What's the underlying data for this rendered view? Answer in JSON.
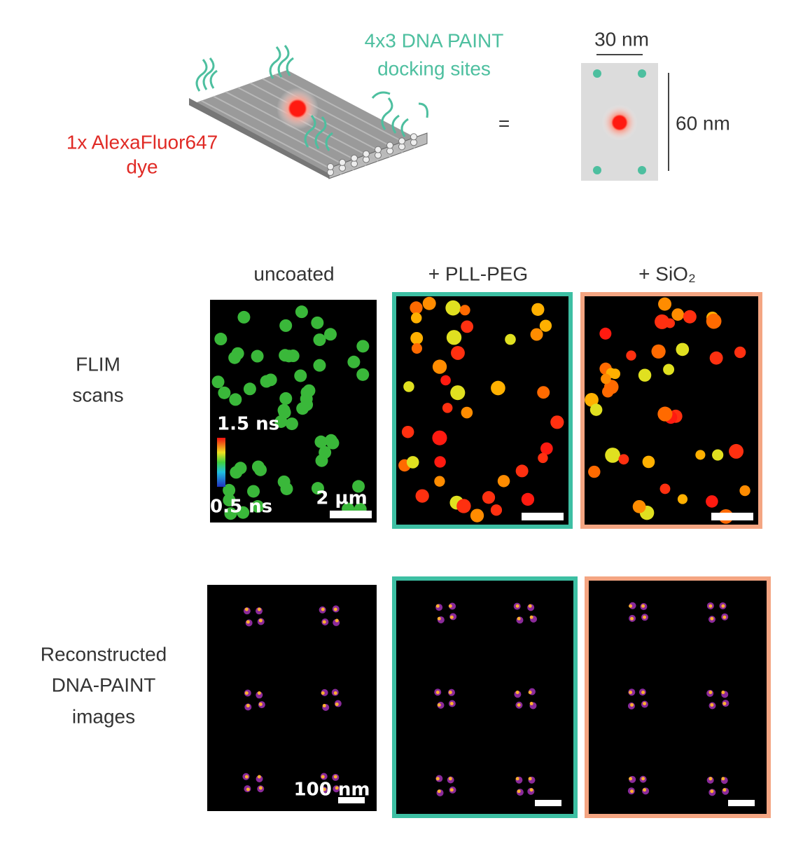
{
  "schematic": {
    "docking_label": [
      "4x3 DNA PAINT",
      "docking sites"
    ],
    "dye_label": [
      "1x AlexaFluor647",
      "dye"
    ],
    "equals": "=",
    "width_label": "30 nm",
    "height_label": "60 nm"
  },
  "columns": [
    "uncoated",
    "+ PLL-PEG",
    "+ SiO₂"
  ],
  "rows": [
    {
      "label": [
        "FLIM",
        "scans"
      ],
      "colorbar": {
        "max": "1.5 ns",
        "min": "0.5 ns"
      },
      "scale_bar": "2 µm"
    },
    {
      "label": [
        "Reconstructed",
        "DNA-PAINT",
        "images"
      ],
      "scale_bar": "100 nm"
    }
  ]
}
